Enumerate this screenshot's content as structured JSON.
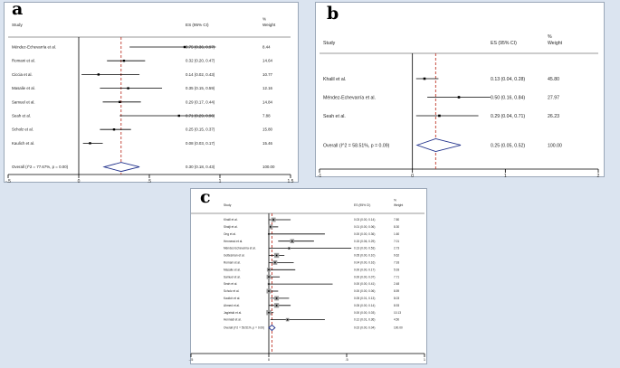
{
  "chart_data": [
    {
      "type": "forest",
      "panel_label": "a",
      "col_study": "Study",
      "col_es": "ES (95% CI)",
      "col_weight_pct": "%",
      "col_weight": "Weight",
      "xlim": [
        -0.5,
        1.5
      ],
      "ticks": [
        "-.5",
        "0",
        ".5",
        "1",
        "1.5"
      ],
      "tick_values": [
        -0.5,
        0,
        0.5,
        1,
        1.5
      ],
      "overall_line": 0.3,
      "rows": [
        {
          "study": "Méndez-Echevarría et al.",
          "es": 0.75,
          "lo": 0.36,
          "hi": 0.97,
          "ci": "0.75 (0.36, 0.97)",
          "weight": "8.44"
        },
        {
          "study": "Romani et al.",
          "es": 0.32,
          "lo": 0.2,
          "hi": 0.47,
          "ci": "0.32 (0.20, 0.47)",
          "weight": "14.64"
        },
        {
          "study": "Ciccia et al.",
          "es": 0.14,
          "lo": 0.02,
          "hi": 0.43,
          "ci": "0.14 (0.02, 0.43)",
          "weight": "10.77"
        },
        {
          "study": "Masalie et al.",
          "es": 0.35,
          "lo": 0.15,
          "hi": 0.59,
          "ci": "0.35 (0.15, 0.59)",
          "weight": "12.16"
        },
        {
          "study": "Samuel et al.",
          "es": 0.29,
          "lo": 0.17,
          "hi": 0.44,
          "ci": "0.29 (0.17, 0.44)",
          "weight": "14.84"
        },
        {
          "study": "Seah et al.",
          "es": 0.71,
          "lo": 0.29,
          "hi": 0.96,
          "ci": "0.71 (0.29, 0.96)",
          "weight": "7.88"
        },
        {
          "study": "Scholz et al.",
          "es": 0.25,
          "lo": 0.15,
          "hi": 0.37,
          "ci": "0.25 (0.15, 0.37)",
          "weight": "15.80"
        },
        {
          "study": "Kaulich et al.",
          "es": 0.08,
          "lo": 0.03,
          "hi": 0.17,
          "ci": "0.08 (0.03, 0.17)",
          "weight": "15.46"
        }
      ],
      "overall": {
        "label": "Overall  (I^2 = 77.67%, p = 0.00)",
        "es": 0.3,
        "lo": 0.18,
        "hi": 0.43,
        "ci": "0.30 (0.18, 0.43)",
        "weight": "100.00"
      }
    },
    {
      "type": "forest",
      "panel_label": "b",
      "col_study": "Study",
      "col_es": "ES (95% CI)",
      "col_weight_pct": "%",
      "col_weight": "Weight",
      "xlim": [
        -1,
        2
      ],
      "ticks": [
        "-1",
        "0",
        "1",
        "2"
      ],
      "tick_values": [
        -1,
        0,
        1,
        2
      ],
      "overall_line": 0.25,
      "rows": [
        {
          "study": "Khalil et al.",
          "es": 0.13,
          "lo": 0.04,
          "hi": 0.28,
          "ci": "0.13 (0.04, 0.28)",
          "weight": "45.80"
        },
        {
          "study": "Méndez-Echevarría et al.",
          "es": 0.5,
          "lo": 0.16,
          "hi": 0.84,
          "ci": "0.50 (0.16, 0.84)",
          "weight": "27.97"
        },
        {
          "study": "Seah et al.",
          "es": 0.29,
          "lo": 0.04,
          "hi": 0.71,
          "ci": "0.29 (0.04, 0.71)",
          "weight": "26.23"
        }
      ],
      "overall": {
        "label": "Overall  (I^2 = 58.51%, p = 0.09)",
        "es": 0.25,
        "lo": 0.05,
        "hi": 0.52,
        "ci": "0.25 (0.05, 0.52)",
        "weight": "100.00"
      }
    },
    {
      "type": "forest",
      "panel_label": "c",
      "col_study": "Study",
      "col_es": "ES (95% CI)",
      "col_weight_pct": "%",
      "col_weight": "Weight",
      "xlim": [
        -0.5,
        1
      ],
      "ticks": [
        "-.5",
        "0",
        ".5",
        "1"
      ],
      "tick_values": [
        -0.5,
        0,
        0.5,
        1
      ],
      "overall_line": 0.02,
      "rows": [
        {
          "study": "Khalil et al.",
          "es": 0.03,
          "lo": 0.0,
          "hi": 0.14,
          "ci": "0.03 (0.00, 0.14)",
          "weight": "7.80"
        },
        {
          "study": "Shaiji et al.",
          "es": 0.01,
          "lo": 0.0,
          "hi": 0.06,
          "ci": "0.01 (0.00, 0.06)",
          "weight": "8.30"
        },
        {
          "study": "Ong et al.",
          "es": 0.0,
          "lo": 0.0,
          "hi": 0.36,
          "ci": "0.00 (0.00, 0.36)",
          "weight": "1.60"
        },
        {
          "study": "Hennessi et al.",
          "es": 0.15,
          "lo": 0.06,
          "hi": 0.29,
          "ci": "0.15 (0.06, 0.29)",
          "weight": "7.01"
        },
        {
          "study": "Méndez-Echevarría et al.",
          "es": 0.13,
          "lo": 0.0,
          "hi": 0.53,
          "ci": "0.13 (0.00, 0.53)",
          "weight": "2.73"
        },
        {
          "study": "Gottesman et al.",
          "es": 0.05,
          "lo": 0.0,
          "hi": 0.1,
          "ci": "0.05 (0.00, 0.10)",
          "weight": "9.62"
        },
        {
          "study": "Romani et al.",
          "es": 0.04,
          "lo": 0.0,
          "hi": 0.16,
          "ci": "0.04 (0.00, 0.16)",
          "weight": "7.93"
        },
        {
          "study": "Masalie et al.",
          "es": 0.0,
          "lo": 0.0,
          "hi": 0.17,
          "ci": "0.00 (0.00, 0.17)",
          "weight": "5.93"
        },
        {
          "study": "Samuel et al.",
          "es": 0.0,
          "lo": 0.0,
          "hi": 0.07,
          "ci": "0.00 (0.00, 0.07)",
          "weight": "7.71"
        },
        {
          "study": "Seah et al.",
          "es": 0.0,
          "lo": 0.0,
          "hi": 0.41,
          "ci": "0.00 (0.00, 0.41)",
          "weight": "2.48"
        },
        {
          "study": "Scholz et al.",
          "es": 0.0,
          "lo": 0.0,
          "hi": 0.06,
          "ci": "0.00 (0.00, 0.06)",
          "weight": "8.59"
        },
        {
          "study": "Kaulich et al.",
          "es": 0.05,
          "lo": 0.01,
          "hi": 0.13,
          "ci": "0.05 (0.01, 0.13)",
          "weight": "8.03"
        },
        {
          "study": "Ahmed et al.",
          "es": 0.05,
          "lo": 0.0,
          "hi": 0.14,
          "ci": "0.05 (0.00, 0.14)",
          "weight": "8.93"
        },
        {
          "study": "Jagielski et al.",
          "es": 0.0,
          "lo": 0.0,
          "hi": 0.03,
          "ci": "0.00 (0.00, 0.03)",
          "weight": "10.13"
        },
        {
          "study": "Hennadi et al.",
          "es": 0.12,
          "lo": 0.01,
          "hi": 0.36,
          "ci": "0.12 (0.01, 0.36)",
          "weight": "4.50"
        }
      ],
      "overall": {
        "label": "Overall  (I^2 = 59.51%, p = 0.00)",
        "es": 0.02,
        "lo": 0.0,
        "hi": 0.04,
        "ci": "0.02 (0.00, 0.04)",
        "weight": "100.00"
      }
    }
  ],
  "colors": {
    "diamond": "#1f2f8a",
    "overall_line": "#c0392b",
    "point": "#000000",
    "weight_box": "#9e9e9e",
    "background": "#dbe4f0"
  }
}
